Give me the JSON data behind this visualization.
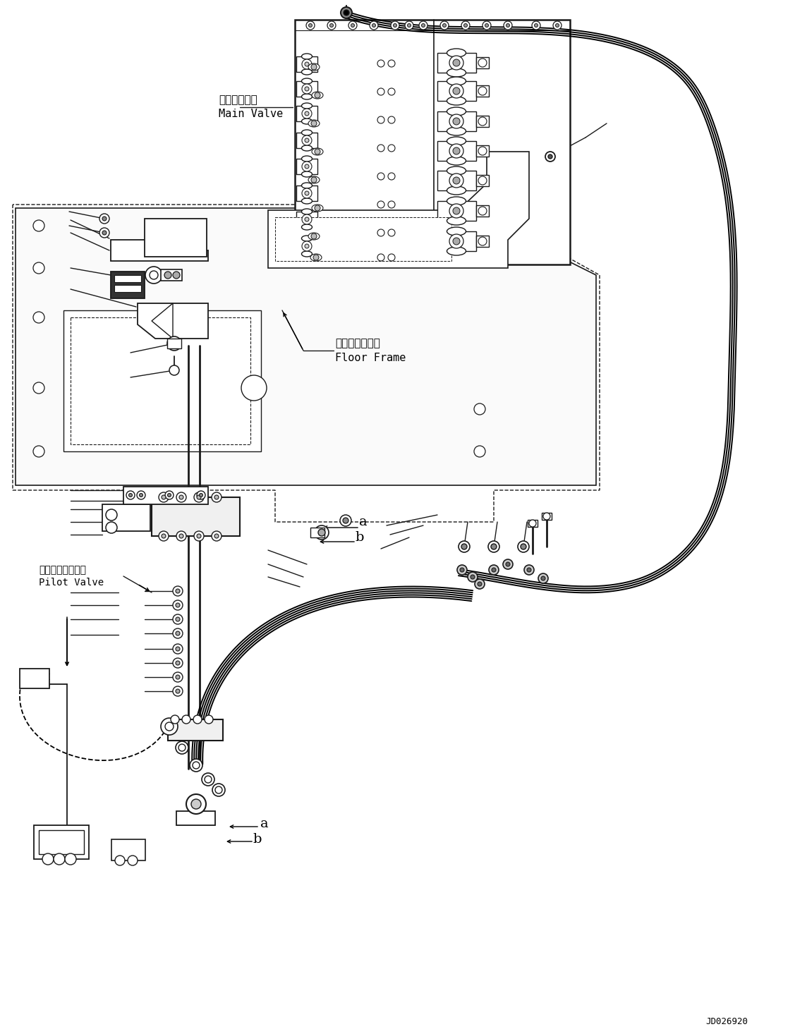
{
  "bg_color": "#ffffff",
  "line_color": "#1a1a1a",
  "label_main_valve_jp": "メインバルブ",
  "label_main_valve_en": "Main Valve",
  "label_floor_frame_jp": "フロアフレーム",
  "label_floor_frame_en": "Floor Frame",
  "label_pilot_valve_jp": "パイロットバルブ",
  "label_pilot_valve_en": "Pilot Valve",
  "watermark": "JD026920",
  "fig_width": 11.44,
  "fig_height": 14.66
}
